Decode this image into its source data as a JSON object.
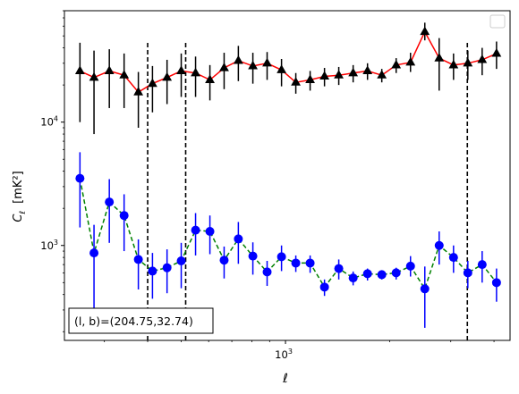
{
  "chart_data": {
    "type": "scatter",
    "xlabel": "ℓ",
    "ylabel_main": "C",
    "ylabel_sub": "ℓ",
    "ylabel_unit": "[mK²]",
    "x_scale": "log",
    "y_scale": "log",
    "xlim": [
      230,
      4450
    ],
    "ylim": [
      170,
      80000
    ],
    "x_ticks": [
      {
        "value": 1000,
        "base": "10",
        "exp": "3"
      }
    ],
    "y_ticks": [
      {
        "value": 1000,
        "base": "10",
        "exp": "3"
      },
      {
        "value": 10000,
        "base": "10",
        "exp": "4"
      }
    ],
    "vlines": [
      400,
      515,
      3350
    ],
    "legend": {
      "placement": "upper right",
      "entries": []
    },
    "annotation": "(l, b)=(204.75,32.74)",
    "series": [
      {
        "marker": "triangle",
        "color": "#000000",
        "line_color": "#ff0000",
        "line_style": "solid",
        "x": [
          255,
          280,
          310,
          342,
          376,
          413,
          455,
          500,
          550,
          605,
          665,
          731,
          805,
          885,
          974,
          1071,
          1178,
          1296,
          1425,
          1568,
          1725,
          1897,
          2087,
          2296,
          2525,
          2778,
          3056,
          3361,
          3697,
          4067
        ],
        "y": [
          26000,
          23000,
          26000,
          24000,
          17500,
          20500,
          23000,
          26000,
          25000,
          22000,
          27500,
          31500,
          28500,
          30000,
          26500,
          21000,
          22000,
          23500,
          24000,
          25000,
          26000,
          24000,
          29000,
          30500,
          54000,
          33000,
          29000,
          30000,
          32000,
          36000
        ],
        "err_low": [
          16000,
          15000,
          13000,
          11000,
          8500,
          8500,
          9000,
          10000,
          9000,
          7000,
          9000,
          10000,
          8000,
          8000,
          7000,
          4000,
          4000,
          4000,
          4000,
          4000,
          4000,
          3000,
          4000,
          5000,
          8000,
          15000,
          7000,
          8000,
          8000,
          9000
        ],
        "err_high": [
          18000,
          15000,
          13000,
          12000,
          8000,
          8000,
          9000,
          10000,
          9000,
          7000,
          9000,
          10000,
          8000,
          7000,
          6000,
          4000,
          4000,
          4000,
          4000,
          4000,
          4000,
          3000,
          4000,
          6000,
          10000,
          15000,
          7000,
          8000,
          8000,
          9000
        ]
      },
      {
        "marker": "circle",
        "color": "#0000ff",
        "line_color": "#008000",
        "line_style": "dashed",
        "x": [
          255,
          280,
          310,
          342,
          376,
          413,
          455,
          500,
          550,
          605,
          665,
          731,
          805,
          885,
          974,
          1071,
          1178,
          1296,
          1425,
          1568,
          1725,
          1897,
          2087,
          2296,
          2525,
          2778,
          3056,
          3361,
          3697,
          4067
        ],
        "y": [
          3500,
          870,
          2250,
          1750,
          770,
          620,
          660,
          750,
          1330,
          1300,
          760,
          1130,
          820,
          610,
          810,
          720,
          720,
          460,
          650,
          545,
          590,
          580,
          600,
          680,
          445,
          1000,
          800,
          600,
          700,
          500
        ],
        "err_low": [
          2100,
          600,
          1200,
          850,
          330,
          250,
          250,
          300,
          500,
          450,
          220,
          420,
          240,
          140,
          190,
          110,
          120,
          70,
          120,
          70,
          70,
          50,
          70,
          120,
          230,
          300,
          200,
          150,
          200,
          150
        ],
        "err_high": [
          2200,
          600,
          1200,
          850,
          350,
          250,
          270,
          300,
          500,
          450,
          220,
          420,
          240,
          140,
          190,
          110,
          110,
          70,
          120,
          70,
          60,
          50,
          60,
          140,
          230,
          300,
          200,
          150,
          200,
          150
        ]
      }
    ]
  }
}
